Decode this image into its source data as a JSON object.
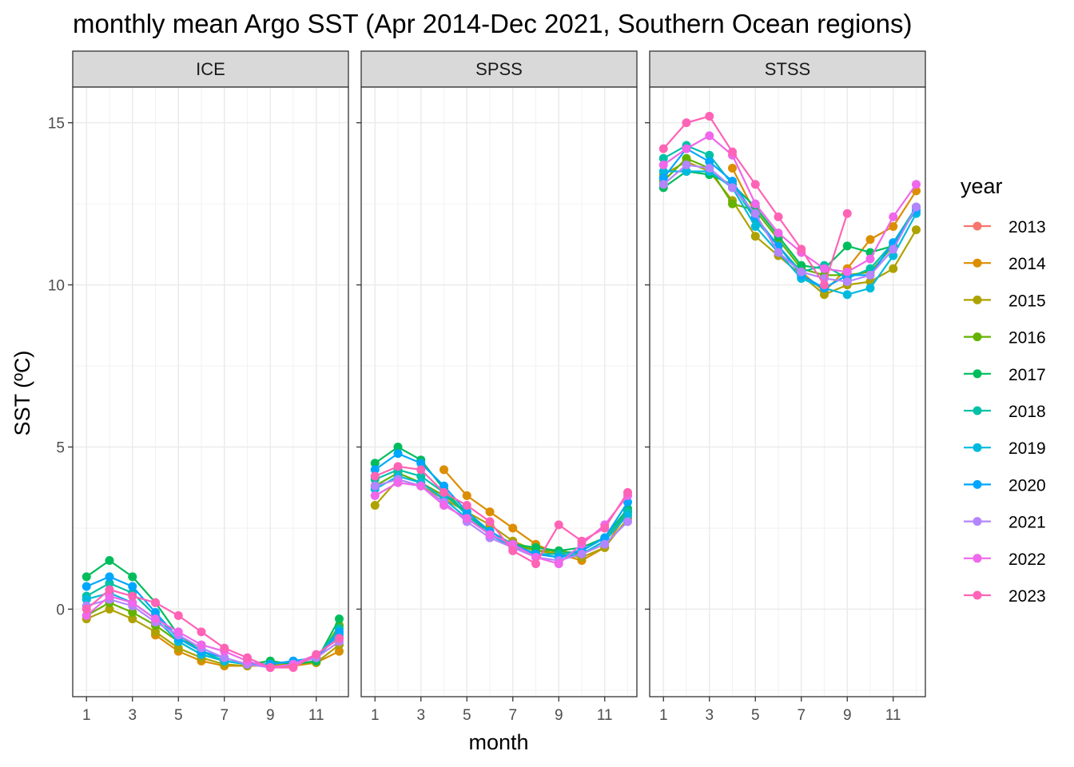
{
  "chart_data": {
    "type": "line",
    "title": "monthly mean Argo SST (Apr 2014-Dec 2021, Southern Ocean regions)",
    "xlabel": "month",
    "ylabel": "SST (ºC)",
    "x_ticks": [
      "1",
      "3",
      "5",
      "7",
      "9",
      "11"
    ],
    "y_ticks": [
      "0",
      "5",
      "10",
      "15"
    ],
    "xlim": [
      0.4,
      12.4
    ],
    "ylim": [
      -2.7,
      16.1
    ],
    "grid": true,
    "legend": {
      "title": "year",
      "placement": "right"
    },
    "facets": [
      "ICE",
      "SPSS",
      "STSS"
    ],
    "colors": {
      "2013": "#F8766D",
      "2014": "#DB8E00",
      "2015": "#AEA200",
      "2016": "#64B200",
      "2017": "#00BD5C",
      "2018": "#00C1A7",
      "2019": "#00BADE",
      "2020": "#00A6FF",
      "2021": "#B385FF",
      "2022": "#EF67EB",
      "2023": "#FF63B6"
    },
    "series": [
      {
        "name": "2013",
        "color": "#F8766D",
        "panels": {
          "ICE": [
            null,
            null,
            null,
            null,
            null,
            null,
            null,
            null,
            null,
            null,
            null,
            null
          ],
          "SPSS": [
            null,
            null,
            null,
            null,
            null,
            null,
            null,
            null,
            null,
            null,
            null,
            null
          ],
          "STSS": [
            null,
            null,
            null,
            null,
            null,
            null,
            null,
            null,
            null,
            null,
            null,
            null
          ]
        }
      },
      {
        "name": "2014",
        "color": "#DB8E00",
        "panels": {
          "ICE": [
            null,
            null,
            null,
            -0.8,
            -1.3,
            -1.6,
            -1.75,
            -1.75,
            -1.75,
            -1.75,
            -1.65,
            -1.3
          ],
          "SPSS": [
            null,
            null,
            null,
            4.3,
            3.5,
            3.0,
            2.5,
            2.0,
            1.7,
            1.5,
            1.9,
            3.0
          ],
          "STSS": [
            null,
            null,
            null,
            13.6,
            12.2,
            11.0,
            10.4,
            9.8,
            10.5,
            11.4,
            11.8,
            12.9
          ]
        }
      },
      {
        "name": "2015",
        "color": "#AEA200",
        "panels": {
          "ICE": [
            -0.3,
            0.0,
            -0.3,
            -0.7,
            -1.2,
            -1.5,
            -1.7,
            -1.75,
            -1.7,
            -1.7,
            -1.65,
            -1.1
          ],
          "SPSS": [
            3.2,
            4.0,
            3.8,
            3.4,
            3.0,
            2.6,
            2.1,
            1.8,
            1.7,
            1.6,
            1.9,
            2.8
          ],
          "STSS": [
            13.4,
            13.8,
            13.5,
            12.6,
            11.5,
            10.9,
            10.3,
            9.7,
            10.0,
            10.1,
            10.5,
            11.7
          ]
        }
      },
      {
        "name": "2016",
        "color": "#64B200",
        "panels": {
          "ICE": [
            -0.2,
            0.2,
            -0.1,
            -0.5,
            -1.0,
            -1.4,
            -1.6,
            -1.7,
            -1.6,
            -1.7,
            -1.6,
            -0.5
          ],
          "SPSS": [
            3.8,
            4.2,
            3.9,
            3.5,
            3.0,
            2.4,
            2.0,
            1.8,
            1.8,
            1.7,
            2.1,
            3.0
          ],
          "STSS": [
            13.2,
            13.9,
            13.6,
            12.5,
            12.3,
            11.4,
            10.5,
            10.3,
            10.3,
            10.4,
            11.2,
            12.4
          ]
        }
      },
      {
        "name": "2017",
        "color": "#00BD5C",
        "panels": {
          "ICE": [
            1.0,
            1.5,
            1.0,
            0.2,
            -0.8,
            -1.3,
            -1.6,
            -1.7,
            -1.6,
            -1.7,
            -1.6,
            -0.3
          ],
          "SPSS": [
            4.5,
            5.0,
            4.6,
            3.7,
            2.9,
            2.4,
            2.0,
            1.9,
            1.8,
            1.9,
            2.2,
            3.1
          ],
          "STSS": [
            13.0,
            13.5,
            13.4,
            13.1,
            12.4,
            11.5,
            10.6,
            10.5,
            11.2,
            11.0,
            11.2,
            12.4
          ]
        }
      },
      {
        "name": "2018",
        "color": "#00C1A7",
        "panels": {
          "ICE": [
            0.4,
            0.8,
            0.5,
            -0.2,
            -0.9,
            -1.3,
            -1.6,
            -1.7,
            -1.7,
            -1.6,
            -1.5,
            -0.6
          ],
          "SPSS": [
            4.0,
            4.3,
            4.1,
            3.6,
            2.9,
            2.3,
            2.0,
            1.7,
            1.7,
            1.8,
            2.2,
            3.0
          ],
          "STSS": [
            13.9,
            14.3,
            14.0,
            13.1,
            12.0,
            11.2,
            10.4,
            10.6,
            10.2,
            10.5,
            11.3,
            12.4
          ]
        }
      },
      {
        "name": "2019",
        "color": "#00BADE",
        "panels": {
          "ICE": [
            0.3,
            0.5,
            0.2,
            -0.3,
            -1.0,
            -1.4,
            -1.6,
            -1.7,
            -1.7,
            -1.6,
            -1.5,
            -0.8
          ],
          "SPSS": [
            3.7,
            4.1,
            3.9,
            3.4,
            2.8,
            2.3,
            1.9,
            1.7,
            1.6,
            1.7,
            2.1,
            2.9
          ],
          "STSS": [
            13.5,
            13.5,
            13.5,
            13.0,
            11.8,
            11.0,
            10.2,
            9.9,
            9.7,
            9.9,
            10.9,
            12.2
          ]
        }
      },
      {
        "name": "2020",
        "color": "#00A6FF",
        "panels": {
          "ICE": [
            0.7,
            1.0,
            0.7,
            -0.1,
            -0.9,
            -1.3,
            -1.5,
            -1.7,
            -1.7,
            -1.6,
            -1.5,
            -0.7
          ],
          "SPSS": [
            4.3,
            4.8,
            4.5,
            3.8,
            3.0,
            2.4,
            2.0,
            1.7,
            1.6,
            1.8,
            2.2,
            3.3
          ],
          "STSS": [
            13.3,
            14.2,
            13.8,
            13.2,
            12.1,
            11.2,
            10.3,
            9.9,
            10.3,
            10.3,
            11.3,
            12.3
          ]
        }
      },
      {
        "name": "2021",
        "color": "#B385FF",
        "panels": {
          "ICE": [
            0.1,
            0.3,
            0.1,
            -0.4,
            -0.8,
            -1.2,
            -1.5,
            -1.7,
            -1.8,
            -1.7,
            -1.5,
            -1.0
          ],
          "SPSS": [
            3.8,
            4.0,
            3.8,
            3.3,
            2.7,
            2.2,
            1.9,
            1.6,
            1.5,
            1.7,
            2.0,
            2.7
          ],
          "STSS": [
            13.1,
            13.7,
            13.6,
            13.0,
            12.2,
            11.0,
            10.4,
            10.2,
            10.1,
            10.3,
            11.1,
            12.4
          ]
        }
      },
      {
        "name": "2022",
        "color": "#EF67EB",
        "panels": {
          "ICE": [
            -0.2,
            0.4,
            0.2,
            -0.3,
            -0.7,
            -1.1,
            -1.3,
            -1.6,
            -1.8,
            -1.7,
            -1.4,
            -0.9
          ],
          "SPSS": [
            3.5,
            3.9,
            3.8,
            3.2,
            2.8,
            2.3,
            2.0,
            1.6,
            1.4,
            2.0,
            2.6,
            3.5
          ],
          "STSS": [
            13.7,
            14.2,
            14.6,
            14.0,
            12.5,
            11.6,
            11.0,
            10.5,
            10.4,
            10.8,
            12.1,
            13.1
          ]
        }
      },
      {
        "name": "2023",
        "color": "#FF63B6",
        "panels": {
          "ICE": [
            0.0,
            0.6,
            0.4,
            0.2,
            -0.2,
            -0.7,
            -1.2,
            -1.5,
            -1.8,
            -1.8,
            -1.4,
            -0.9
          ],
          "SPSS": [
            4.1,
            4.4,
            4.3,
            3.6,
            3.2,
            2.7,
            1.8,
            1.4,
            2.6,
            2.1,
            2.5,
            3.6
          ],
          "STSS": [
            14.2,
            15.0,
            15.2,
            14.1,
            13.1,
            12.1,
            11.1,
            10.0,
            12.2,
            null,
            null,
            null
          ]
        }
      }
    ]
  }
}
